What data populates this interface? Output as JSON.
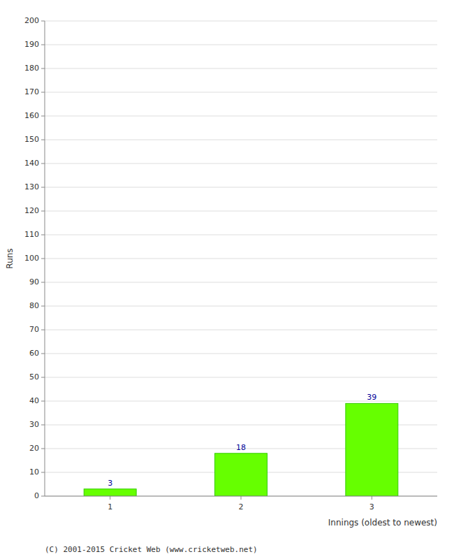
{
  "chart_data": {
    "type": "bar",
    "categories": [
      "1",
      "2",
      "3"
    ],
    "values": [
      3,
      18,
      39
    ],
    "color": "#66ff00",
    "xlabel": "Innings (oldest to newest)",
    "ylabel": "Runs",
    "ylim": [
      0,
      200
    ],
    "yticks": [
      0,
      10,
      20,
      30,
      40,
      50,
      60,
      70,
      80,
      90,
      100,
      110,
      120,
      130,
      140,
      150,
      160,
      170,
      180,
      190,
      200
    ],
    "grid": true,
    "data_labels": true,
    "annotations": [
      "(C) 2001-2015 Cricket Web (www.cricketweb.net)"
    ]
  }
}
